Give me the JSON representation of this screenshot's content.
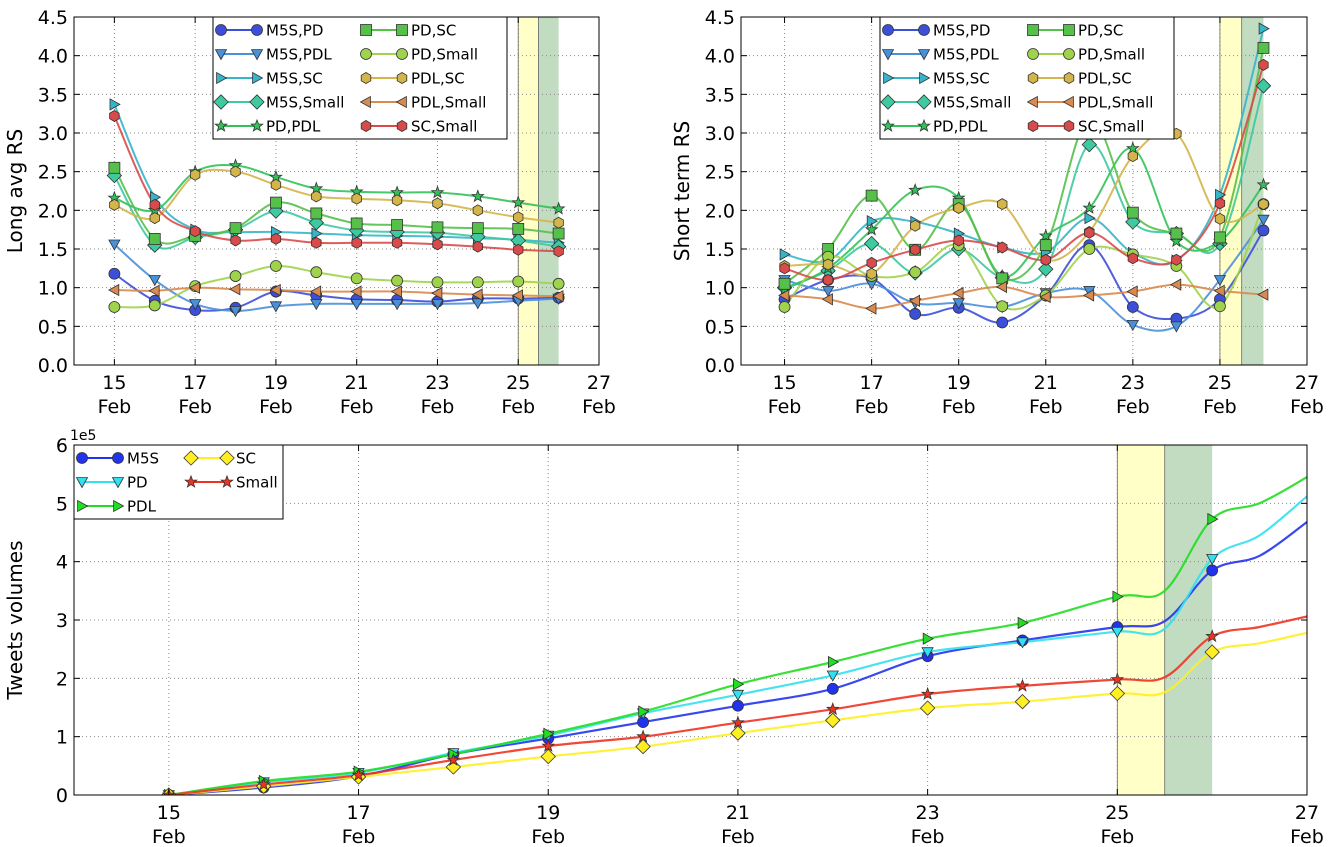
{
  "chart_data": [
    {
      "type": "line",
      "ylabel": "Long avg RS",
      "ylim": [
        0.0,
        4.5
      ],
      "xlim": [
        14,
        27
      ],
      "xticks": [
        15,
        17,
        19,
        21,
        23,
        25,
        27
      ],
      "xtick_labels": [
        [
          "15",
          "Feb"
        ],
        [
          "17",
          "Feb"
        ],
        [
          "19",
          "Feb"
        ],
        [
          "21",
          "Feb"
        ],
        [
          "23",
          "Feb"
        ],
        [
          "25",
          "Feb"
        ],
        [
          "27",
          "Feb"
        ]
      ],
      "yticks": [
        "0.0",
        "0.5",
        "1.0",
        "1.5",
        "2.0",
        "2.5",
        "3.0",
        "3.5",
        "4.0",
        "4.5"
      ],
      "grid": true,
      "legend_placement": "top-center",
      "spans": [
        {
          "from": 25.0,
          "to": 25.5,
          "color": "#ffff99"
        },
        {
          "from": 25.5,
          "to": 26.0,
          "color": "#8fbf8f"
        }
      ],
      "x": [
        15,
        16,
        17,
        18,
        19,
        20,
        21,
        22,
        23,
        24,
        25,
        26
      ],
      "series": [
        {
          "name": "M5S,PD",
          "marker": "circle",
          "color": "#3b4fd8",
          "values": [
            1.18,
            0.83,
            0.71,
            0.74,
            0.95,
            0.9,
            0.85,
            0.84,
            0.82,
            0.86,
            0.86,
            0.87
          ]
        },
        {
          "name": "M5S,PDL",
          "marker": "triangle-down",
          "color": "#4a90d9",
          "values": [
            1.56,
            1.1,
            0.79,
            0.7,
            0.76,
            0.79,
            0.79,
            0.79,
            0.79,
            0.8,
            0.83,
            0.86
          ]
        },
        {
          "name": "M5S,SC",
          "marker": "triangle-right",
          "color": "#36b5c9",
          "values": [
            3.37,
            2.17,
            1.75,
            1.72,
            1.72,
            1.7,
            1.68,
            1.67,
            1.66,
            1.64,
            1.62,
            1.58
          ]
        },
        {
          "name": "M5S,Small",
          "marker": "diamond",
          "color": "#3ec9a0",
          "values": [
            2.45,
            1.55,
            1.65,
            1.75,
            1.99,
            1.84,
            1.74,
            1.72,
            1.71,
            1.66,
            1.61,
            1.53
          ]
        },
        {
          "name": "PD,PDL",
          "marker": "star",
          "color": "#33c25a",
          "values": [
            2.16,
            2.0,
            2.5,
            2.58,
            2.43,
            2.28,
            2.24,
            2.23,
            2.23,
            2.18,
            2.1,
            2.02
          ]
        },
        {
          "name": "PD,SC",
          "marker": "square",
          "color": "#55c04a",
          "values": [
            2.55,
            1.63,
            1.67,
            1.77,
            2.1,
            1.96,
            1.83,
            1.81,
            1.78,
            1.77,
            1.76,
            1.7
          ]
        },
        {
          "name": "PD,Small",
          "marker": "circle",
          "color": "#9fd34c",
          "values": [
            0.75,
            0.77,
            1.02,
            1.15,
            1.28,
            1.2,
            1.12,
            1.09,
            1.07,
            1.07,
            1.08,
            1.05
          ]
        },
        {
          "name": "PDL,SC",
          "marker": "hexagon",
          "color": "#d4b54a",
          "values": [
            2.07,
            1.9,
            2.46,
            2.5,
            2.33,
            2.18,
            2.15,
            2.13,
            2.09,
            2.0,
            1.91,
            1.84
          ]
        },
        {
          "name": "PDL,Small",
          "marker": "triangle-left",
          "color": "#d98a4e",
          "values": [
            0.97,
            0.96,
            1.0,
            0.98,
            0.97,
            0.95,
            0.95,
            0.95,
            0.93,
            0.91,
            0.9,
            0.89
          ]
        },
        {
          "name": "SC,Small",
          "marker": "hexagon",
          "color": "#d94a4a",
          "values": [
            3.22,
            2.07,
            1.73,
            1.61,
            1.63,
            1.58,
            1.58,
            1.58,
            1.56,
            1.53,
            1.49,
            1.47
          ]
        }
      ]
    },
    {
      "type": "line",
      "ylabel": "Short term RS",
      "ylim": [
        0.0,
        4.5
      ],
      "xlim": [
        14,
        27
      ],
      "xticks": [
        15,
        17,
        19,
        21,
        23,
        25,
        27
      ],
      "xtick_labels": [
        [
          "15",
          "Feb"
        ],
        [
          "17",
          "Feb"
        ],
        [
          "19",
          "Feb"
        ],
        [
          "21",
          "Feb"
        ],
        [
          "23",
          "Feb"
        ],
        [
          "25",
          "Feb"
        ],
        [
          "27",
          "Feb"
        ]
      ],
      "yticks": [
        "0.0",
        "0.5",
        "1.0",
        "1.5",
        "2.0",
        "2.5",
        "3.0",
        "3.5",
        "4.0",
        "4.5"
      ],
      "grid": true,
      "legend_placement": "top-center",
      "spans": [
        {
          "from": 25.0,
          "to": 25.5,
          "color": "#ffff99"
        },
        {
          "from": 25.5,
          "to": 26.0,
          "color": "#8fbf8f"
        }
      ],
      "x": [
        15,
        16,
        17,
        18,
        19,
        20,
        21,
        22,
        23,
        24,
        25,
        26
      ],
      "series": [
        {
          "name": "M5S,PD",
          "marker": "circle",
          "color": "#3b4fd8",
          "values": [
            0.85,
            1.1,
            1.12,
            0.66,
            0.74,
            0.55,
            0.9,
            1.55,
            0.75,
            0.6,
            0.85,
            1.74
          ]
        },
        {
          "name": "M5S,PDL",
          "marker": "triangle-down",
          "color": "#4a90d9",
          "values": [
            1.1,
            0.96,
            1.05,
            0.8,
            0.8,
            0.75,
            0.93,
            0.96,
            0.52,
            0.5,
            1.1,
            1.88
          ]
        },
        {
          "name": "M5S,SC",
          "marker": "triangle-right",
          "color": "#36b5c9",
          "values": [
            1.43,
            1.35,
            1.86,
            1.85,
            1.7,
            1.52,
            1.46,
            1.9,
            1.45,
            1.35,
            2.2,
            4.35
          ]
        },
        {
          "name": "M5S,Small",
          "marker": "diamond",
          "color": "#3ec9a0",
          "values": [
            1.0,
            1.22,
            1.57,
            1.19,
            1.5,
            1.13,
            1.24,
            2.85,
            1.85,
            1.7,
            1.57,
            3.61
          ]
        },
        {
          "name": "PD,PDL",
          "marker": "star",
          "color": "#33c25a",
          "values": [
            0.98,
            1.25,
            1.75,
            2.26,
            2.16,
            1.15,
            1.67,
            2.03,
            2.8,
            1.6,
            1.6,
            2.33
          ]
        },
        {
          "name": "PD,SC",
          "marker": "square",
          "color": "#55c04a",
          "values": [
            1.05,
            1.5,
            2.19,
            1.49,
            2.08,
            1.12,
            1.55,
            3.19,
            1.97,
            1.7,
            1.65,
            4.1
          ]
        },
        {
          "name": "PD,Small",
          "marker": "circle",
          "color": "#9fd34c",
          "values": [
            0.75,
            1.4,
            1.15,
            1.2,
            1.55,
            0.76,
            0.9,
            1.5,
            1.43,
            1.28,
            0.76,
            2.08
          ]
        },
        {
          "name": "PDL,SC",
          "marker": "hexagon",
          "color": "#d4b54a",
          "values": [
            1.28,
            1.3,
            1.18,
            1.8,
            2.03,
            2.08,
            1.36,
            1.72,
            2.7,
            2.99,
            1.89,
            2.08
          ]
        },
        {
          "name": "PDL,Small",
          "marker": "triangle-left",
          "color": "#d98a4e",
          "values": [
            0.9,
            0.85,
            0.73,
            0.83,
            0.93,
            1.01,
            0.88,
            0.9,
            0.95,
            1.04,
            0.96,
            0.91
          ]
        },
        {
          "name": "SC,Small",
          "marker": "hexagon",
          "color": "#d94a4a",
          "values": [
            1.25,
            1.1,
            1.32,
            1.49,
            1.61,
            1.52,
            1.36,
            1.71,
            1.38,
            1.36,
            2.09,
            3.88
          ]
        }
      ]
    },
    {
      "type": "line",
      "ylabel": "Tweets volumes",
      "y_multiplier": "1e5",
      "ylim": [
        0,
        6
      ],
      "xlim": [
        14,
        27
      ],
      "xticks": [
        15,
        17,
        19,
        21,
        23,
        25,
        27
      ],
      "xtick_labels": [
        [
          "15",
          "Feb"
        ],
        [
          "17",
          "Feb"
        ],
        [
          "19",
          "Feb"
        ],
        [
          "21",
          "Feb"
        ],
        [
          "23",
          "Feb"
        ],
        [
          "25",
          "Feb"
        ],
        [
          "27",
          "Feb"
        ]
      ],
      "yticks": [
        "0",
        "1",
        "2",
        "3",
        "4",
        "5",
        "6"
      ],
      "grid": true,
      "legend_placement": "top-left",
      "spans": [
        {
          "from": 25.0,
          "to": 25.5,
          "color": "#ffff99"
        },
        {
          "from": 25.5,
          "to": 26.0,
          "color": "#8fbf8f"
        }
      ],
      "x": [
        15,
        16,
        17,
        18,
        19,
        20,
        21,
        22,
        23,
        24,
        25,
        25.5,
        26,
        26.5,
        27
      ],
      "series": [
        {
          "name": "M5S",
          "marker": "circle",
          "color": "#2233ee",
          "values": [
            0.0,
            0.13,
            0.32,
            0.7,
            0.97,
            1.25,
            1.53,
            1.82,
            2.38,
            2.65,
            2.88,
            2.98,
            3.85,
            4.1,
            4.68
          ]
        },
        {
          "name": "PD",
          "marker": "triangle-down",
          "color": "#33e0f0",
          "values": [
            0.0,
            0.22,
            0.38,
            0.72,
            1.02,
            1.4,
            1.72,
            2.05,
            2.45,
            2.62,
            2.8,
            2.85,
            4.05,
            4.45,
            5.12
          ]
        },
        {
          "name": "PDL",
          "marker": "triangle-right",
          "color": "#22dd22",
          "values": [
            0.0,
            0.24,
            0.4,
            0.7,
            1.05,
            1.43,
            1.9,
            2.28,
            2.68,
            2.95,
            3.4,
            3.5,
            4.73,
            5.0,
            5.45
          ]
        },
        {
          "name": "SC",
          "marker": "diamond",
          "color": "#ffee22",
          "values": [
            0.0,
            0.15,
            0.31,
            0.48,
            0.66,
            0.83,
            1.06,
            1.28,
            1.49,
            1.6,
            1.74,
            1.76,
            2.45,
            2.6,
            2.78
          ]
        },
        {
          "name": "Small",
          "marker": "star",
          "color": "#ee3322",
          "values": [
            0.0,
            0.18,
            0.34,
            0.6,
            0.84,
            1.0,
            1.24,
            1.47,
            1.73,
            1.87,
            1.98,
            2.02,
            2.72,
            2.88,
            3.06
          ]
        }
      ]
    }
  ]
}
